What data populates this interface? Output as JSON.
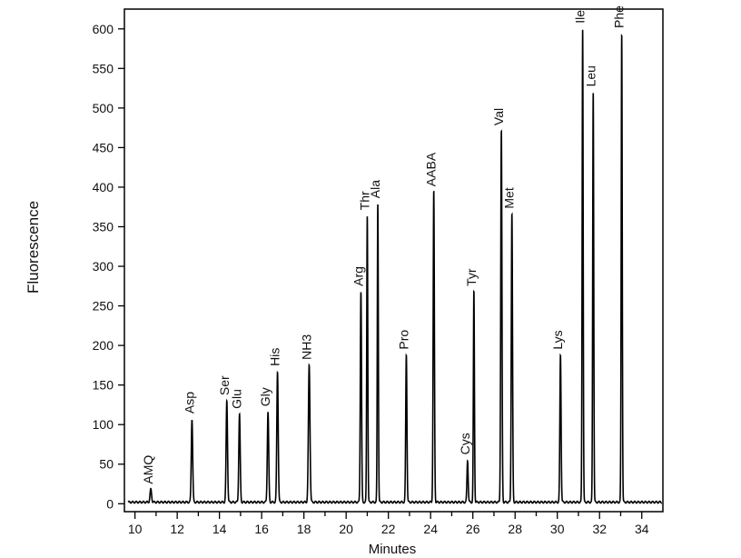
{
  "chart_data": {
    "type": "line",
    "title": "",
    "xlabel": "Minutes",
    "ylabel": "Fluorescence",
    "xlim": [
      9.5,
      35.0
    ],
    "ylim": [
      -10,
      625
    ],
    "xticks": [
      10,
      12,
      14,
      16,
      18,
      20,
      22,
      24,
      26,
      28,
      30,
      32,
      34
    ],
    "yticks": [
      0,
      50,
      100,
      150,
      200,
      250,
      300,
      350,
      400,
      450,
      500,
      550,
      600
    ],
    "baseline": 2,
    "grid": false,
    "legend": "none",
    "peaks": [
      {
        "label": "AMQ",
        "x": 10.75,
        "y": 18,
        "width": 0.09
      },
      {
        "label": "Asp",
        "x": 12.7,
        "y": 107,
        "width": 0.08
      },
      {
        "label": "Ser",
        "x": 14.35,
        "y": 130,
        "width": 0.08
      },
      {
        "label": "Glu",
        "x": 14.95,
        "y": 113,
        "width": 0.08
      },
      {
        "label": "Gly",
        "x": 16.3,
        "y": 116,
        "width": 0.08
      },
      {
        "label": "His",
        "x": 16.75,
        "y": 167,
        "width": 0.08
      },
      {
        "label": "NH3",
        "x": 18.25,
        "y": 175,
        "width": 0.09
      },
      {
        "label": "Arg",
        "x": 20.7,
        "y": 268,
        "width": 0.07
      },
      {
        "label": "Thr",
        "x": 21.0,
        "y": 364,
        "width": 0.06
      },
      {
        "label": "Ala",
        "x": 21.5,
        "y": 379,
        "width": 0.06
      },
      {
        "label": "Pro",
        "x": 22.85,
        "y": 188,
        "width": 0.07
      },
      {
        "label": "AABA",
        "x": 24.15,
        "y": 394,
        "width": 0.07
      },
      {
        "label": "Cys",
        "x": 25.75,
        "y": 55,
        "width": 0.07
      },
      {
        "label": "Tyr",
        "x": 26.05,
        "y": 268,
        "width": 0.06
      },
      {
        "label": "Val",
        "x": 27.35,
        "y": 471,
        "width": 0.07
      },
      {
        "label": "Met",
        "x": 27.85,
        "y": 366,
        "width": 0.07
      },
      {
        "label": "Lys",
        "x": 30.15,
        "y": 188,
        "width": 0.07
      },
      {
        "label": "Ile",
        "x": 31.2,
        "y": 600,
        "width": 0.06
      },
      {
        "label": "Leu",
        "x": 31.7,
        "y": 520,
        "width": 0.06
      },
      {
        "label": "Phe",
        "x": 33.05,
        "y": 594,
        "width": 0.06
      }
    ]
  }
}
